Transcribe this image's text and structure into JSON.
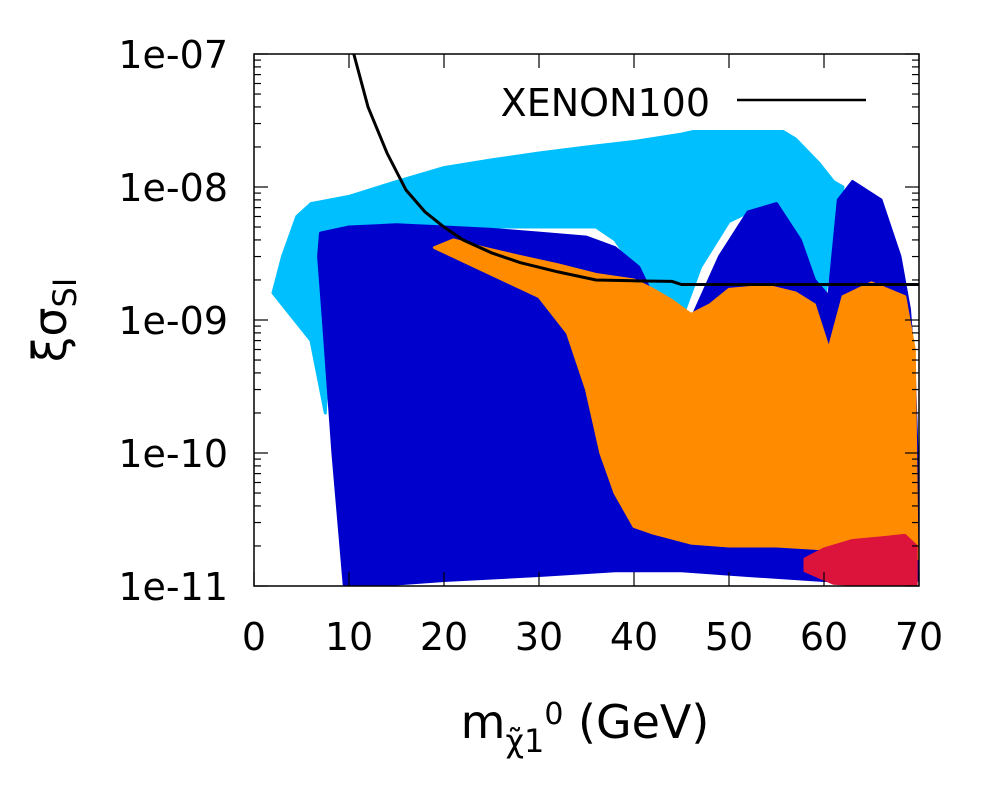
{
  "chart_data": {
    "type": "scatter",
    "title": "",
    "xlabel": {
      "base": "m",
      "subscript": "χ̃",
      "subscript2": "1",
      "superscript": "0",
      "unit": " (GeV)"
    },
    "ylabel": {
      "base": "ξσ",
      "subscript": "SI"
    },
    "xlim": [
      0,
      70
    ],
    "ylim": [
      1e-11,
      1e-07
    ],
    "yscale": "log",
    "xticks": [
      0,
      10,
      20,
      30,
      40,
      50,
      60,
      70
    ],
    "xtick_labels": [
      "0",
      "10",
      "20",
      "30",
      "40",
      "50",
      "60",
      "70"
    ],
    "yticks": [
      1e-11,
      1e-10,
      1e-09,
      1e-08,
      1e-07
    ],
    "ytick_labels": [
      "1e-11",
      "1e-10",
      "1e-09",
      "1e-08",
      "1e-07"
    ],
    "legend": {
      "position": "top-right",
      "entries": [
        {
          "label": "XENON100",
          "style": "line",
          "color": "#000000"
        }
      ]
    },
    "curve": {
      "name": "XENON100",
      "color": "#000000",
      "x": [
        10.5,
        12,
        14,
        16,
        18,
        20,
        22,
        25,
        28,
        32,
        36,
        40,
        44,
        45,
        50,
        55,
        60,
        65,
        70
      ],
      "y": [
        1e-07,
        4e-08,
        1.8e-08,
        9.5e-09,
        6.5e-09,
        5e-09,
        4e-09,
        3.2e-09,
        2.7e-09,
        2.3e-09,
        2e-09,
        1.97e-09,
        1.95e-09,
        1.85e-09,
        1.85e-09,
        1.85e-09,
        1.85e-09,
        1.85e-09,
        1.85e-09
      ]
    },
    "regions": [
      {
        "name": "light-blue points",
        "color": "#00bfff",
        "x": [
          2.0,
          3.0,
          4.5,
          6.0,
          10,
          15,
          20,
          25,
          30,
          35,
          40,
          45,
          50,
          53,
          55,
          57,
          59.5,
          61,
          62,
          60,
          58,
          56,
          55,
          53,
          50,
          47,
          44,
          42,
          40,
          38,
          36,
          20,
          10,
          8,
          7.5,
          6
        ],
        "y": [
          1.6e-09,
          3e-09,
          6e-09,
          7.5e-09,
          8.5e-09,
          1.1e-08,
          1.4e-08,
          1.6e-08,
          1.8e-08,
          2e-08,
          2.2e-08,
          2.5e-08,
          3e-08,
          3.2e-08,
          2.8e-08,
          2.3e-08,
          1.5e-08,
          1.1e-08,
          1e-08,
          1.4e-09,
          3e-09,
          5.5e-09,
          6.5e-09,
          7e-09,
          5.5e-09,
          2.5e-09,
          6.5e-10,
          1.2e-09,
          2.5e-09,
          4e-09,
          5e-09,
          5e-09,
          5e-09,
          1e-09,
          2e-10,
          7e-10
        ]
      },
      {
        "name": "dark-blue points",
        "color": "#0000cd",
        "x": [
          8.3,
          7.3,
          6.8,
          7.0,
          10,
          15,
          20,
          25,
          30,
          35,
          38,
          40.5,
          42,
          44,
          46,
          49,
          52,
          55,
          57.5,
          59,
          60.5,
          61.5,
          63,
          66,
          68,
          69,
          69.5,
          69.8,
          69.8,
          60,
          52,
          45,
          38,
          30,
          20,
          12,
          9.5
        ],
        "y": [
          1e-10,
          1e-09,
          3e-09,
          4.5e-09,
          5e-09,
          5.2e-09,
          5e-09,
          4.8e-09,
          4.5e-09,
          4.2e-09,
          3.5e-09,
          2.5e-09,
          1.5e-09,
          6.5e-10,
          1e-09,
          3e-09,
          6.5e-09,
          7.5e-09,
          4e-09,
          2e-09,
          1.5e-09,
          8e-09,
          1.1e-08,
          8e-09,
          3e-09,
          1.2e-09,
          4e-10,
          1e-10,
          1.1e-11,
          1.1e-11,
          1.2e-11,
          1.3e-11,
          1.3e-11,
          1.2e-11,
          1.1e-11,
          1e-11,
          1e-11
        ]
      },
      {
        "name": "orange points",
        "color": "#ff8c00",
        "x": [
          19,
          21,
          24,
          28,
          32,
          36,
          40,
          42,
          44,
          46,
          48,
          50,
          54,
          57,
          59,
          60.5,
          62,
          65,
          68.5,
          69.5,
          69.8,
          69.5,
          65,
          60,
          55,
          50,
          46,
          42,
          40,
          38,
          36.5,
          35,
          33,
          30
        ],
        "y": [
          3.5e-09,
          4e-09,
          3.5e-09,
          3e-09,
          2.6e-09,
          2.2e-09,
          2e-09,
          1.7e-09,
          1.4e-09,
          1.1e-09,
          1.3e-09,
          1.7e-09,
          1.8e-09,
          1.6e-09,
          1.3e-09,
          6e-10,
          1.5e-09,
          1.9e-09,
          1.5e-09,
          6e-10,
          1.6e-11,
          1.6e-11,
          1.9e-11,
          1.9e-11,
          2e-11,
          2e-11,
          2.1e-11,
          2.5e-11,
          2.8e-11,
          5e-11,
          1e-10,
          3e-10,
          8e-10,
          1.5e-09
        ]
      },
      {
        "name": "crimson points",
        "color": "#dc143c",
        "x": [
          58,
          60,
          63,
          66,
          68.5,
          69.7,
          69.7,
          66,
          61,
          58
        ],
        "y": [
          1.6e-11,
          1.9e-11,
          2.2e-11,
          2.3e-11,
          2.4e-11,
          2e-11,
          1e-11,
          1e-11,
          1.05e-11,
          1.3e-11
        ]
      }
    ]
  }
}
